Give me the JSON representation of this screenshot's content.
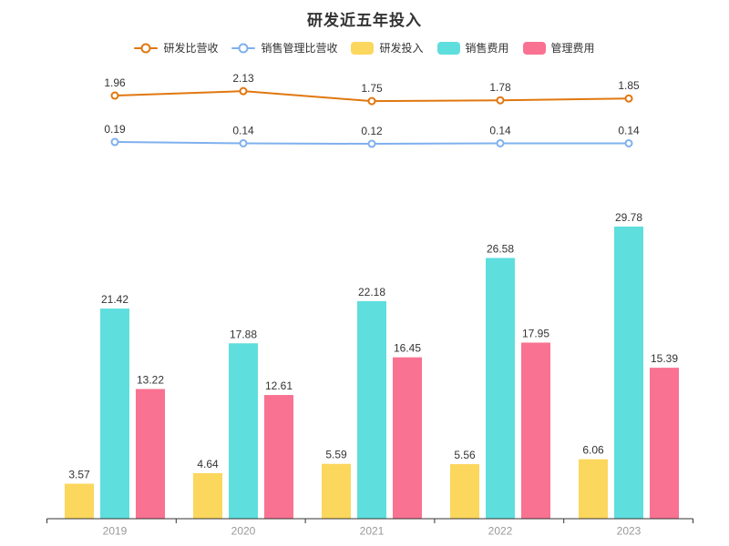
{
  "title": "研发近五年投入",
  "colors": {
    "rd_ratio_line": "#E1770F",
    "sm_ratio_line": "#7FB0EE",
    "rd_invest_bar": "#FCD75D",
    "sales_exp_bar": "#5FDEDE",
    "mgmt_exp_bar": "#F97291",
    "label_text": "#333333",
    "axis_line": "#333333",
    "axis_tick_label": "#999999"
  },
  "legend": [
    {
      "label": "研发比营收",
      "type": "line",
      "color": "#E1770F"
    },
    {
      "label": "销售管理比营收",
      "type": "line",
      "color": "#7FB0EE"
    },
    {
      "label": "研发投入",
      "type": "bar",
      "color": "#FCD75D"
    },
    {
      "label": "销售费用",
      "type": "bar",
      "color": "#5FDEDE"
    },
    {
      "label": "管理费用",
      "type": "bar",
      "color": "#F97291"
    }
  ],
  "chart_data": {
    "type": "bar+line combo",
    "title": "研发近五年投入",
    "categories": [
      "2019",
      "2020",
      "2021",
      "2022",
      "2023"
    ],
    "series": [
      {
        "name": "研发比营收",
        "type": "line",
        "axis": "secondary",
        "color": "#E1770F",
        "values": [
          1.96,
          2.13,
          1.75,
          1.78,
          1.85
        ]
      },
      {
        "name": "销售管理比营收",
        "type": "line",
        "axis": "secondary",
        "color": "#7FB0EE",
        "values": [
          0.19,
          0.14,
          0.12,
          0.14,
          0.14
        ]
      },
      {
        "name": "研发投入",
        "type": "bar",
        "axis": "primary",
        "color": "#FCD75D",
        "values": [
          3.57,
          4.64,
          5.59,
          5.56,
          6.06
        ]
      },
      {
        "name": "销售费用",
        "type": "bar",
        "axis": "primary",
        "color": "#5FDEDE",
        "values": [
          21.42,
          17.88,
          22.18,
          26.58,
          29.78
        ]
      },
      {
        "name": "管理费用",
        "type": "bar",
        "axis": "primary",
        "color": "#F97291",
        "values": [
          13.22,
          12.61,
          16.45,
          17.95,
          15.39
        ]
      }
    ],
    "xlabel": "",
    "ylabel": "",
    "grid": false,
    "y_axis_labels_visible": false,
    "data_labels_visible": true,
    "legend_position": "top-center"
  }
}
